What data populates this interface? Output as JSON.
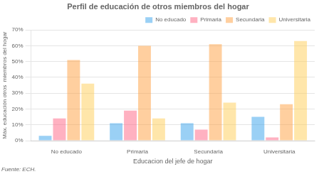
{
  "chart_data": {
    "type": "bar",
    "title": "Perfil de educación de otros miembros del hogar",
    "xlabel": "Educacion del jefe de hogar",
    "ylabel": "Máx. educación otros  miembros del hogar",
    "annotations": [
      "Fuente: ECH."
    ],
    "categories": [
      "No educado",
      "Primaria",
      "Secundaria",
      "Universitaria"
    ],
    "series": [
      {
        "name": "No educado",
        "values": [
          3,
          11,
          11,
          15
        ]
      },
      {
        "name": "Primaria",
        "values": [
          14,
          19,
          7,
          2
        ]
      },
      {
        "name": "Secundaria",
        "values": [
          51,
          60,
          61,
          23
        ]
      },
      {
        "name": "Universitaria",
        "values": [
          36,
          14,
          24,
          63
        ]
      }
    ],
    "ylim": [
      0,
      70
    ],
    "yticks": [
      {
        "value": 0,
        "label": "0%"
      },
      {
        "value": 10,
        "label": "10%"
      },
      {
        "value": 20,
        "label": "20%"
      },
      {
        "value": 30,
        "label": "30%"
      },
      {
        "value": 40,
        "label": "40%"
      },
      {
        "value": 50,
        "label": "50%"
      },
      {
        "value": 60,
        "label": "60%"
      },
      {
        "value": 70,
        "label": "70%"
      }
    ],
    "grid": true,
    "legend": "upper right"
  }
}
